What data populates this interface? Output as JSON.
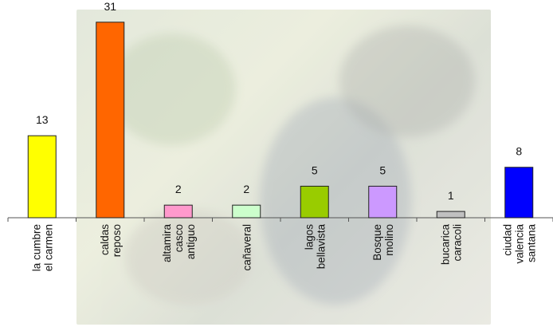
{
  "chart_data": {
    "type": "bar",
    "title": "",
    "xlabel": "",
    "ylabel": "",
    "ylim": [
      0,
      33
    ],
    "grid": false,
    "categories": [
      [
        "la cumbre",
        "el carmen"
      ],
      [
        "caldas",
        "reposo"
      ],
      [
        "altamira",
        "casco",
        "antiguo"
      ],
      [
        "cañaveral"
      ],
      [
        "lagos",
        "bellavista"
      ],
      [
        "Bosque",
        "molino"
      ],
      [
        "bucarica",
        "caracoli"
      ],
      [
        "ciudad",
        "valencia",
        "santana"
      ]
    ],
    "values": [
      13,
      31,
      2,
      2,
      5,
      5,
      1,
      8
    ],
    "value_labels": [
      "13",
      "31",
      "2",
      "2",
      "5",
      "5",
      "1",
      "8"
    ],
    "colors": [
      "#ffff00",
      "#ff6600",
      "#ff99cc",
      "#ccffcc",
      "#99cc00",
      "#cc99ff",
      "#c0c0c0",
      "#0000ff"
    ]
  }
}
